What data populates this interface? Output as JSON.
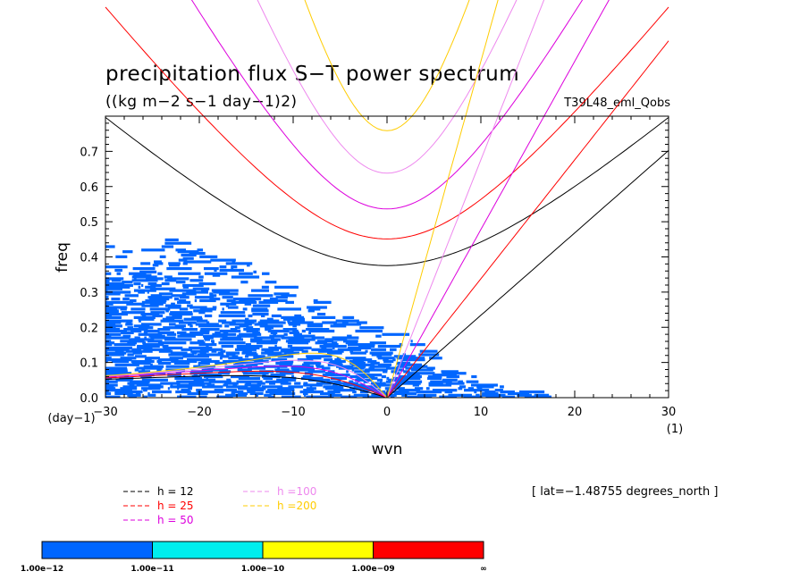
{
  "chart_data": {
    "type": "contour-spectrum",
    "title": "precipitation flux S−T power spectrum",
    "units": "((kg m−2 s−1 day−1)2)",
    "run_label": "T39L48_eml_Qobs",
    "lat_note": "[ lat=−1.48755 degrees_north ]",
    "xlabel": "wvn",
    "ylabel": "freq",
    "x_unit_label": "(1)",
    "y_unit_label": "(day−1)",
    "xlim": [
      -30,
      30
    ],
    "ylim": [
      0,
      0.8
    ],
    "xticks": [
      {
        "value": -30,
        "label": "−30"
      },
      {
        "value": -20,
        "label": "−20"
      },
      {
        "value": -10,
        "label": "−10"
      },
      {
        "value": 0,
        "label": "0"
      },
      {
        "value": 10,
        "label": "10"
      },
      {
        "value": 20,
        "label": "20"
      },
      {
        "value": 30,
        "label": "30"
      }
    ],
    "yticks": [
      {
        "value": 0,
        "label": "0.0"
      },
      {
        "value": 0.1,
        "label": "0.1"
      },
      {
        "value": 0.2,
        "label": "0.2"
      },
      {
        "value": 0.3,
        "label": "0.3"
      },
      {
        "value": 0.4,
        "label": "0.4"
      },
      {
        "value": 0.5,
        "label": "0.5"
      },
      {
        "value": 0.6,
        "label": "0.6"
      },
      {
        "value": 0.7,
        "label": "0.7"
      }
    ],
    "dispersion_curves": [
      {
        "label": "h = 12",
        "h": 12,
        "color": "#000000"
      },
      {
        "label": "h = 25",
        "h": 25,
        "color": "#ff0000"
      },
      {
        "label": "h = 50",
        "h": 50,
        "color": "#dd00dd"
      },
      {
        "label": "h =100",
        "h": 100,
        "color": "#ee88ee"
      },
      {
        "label": "h =200",
        "h": 200,
        "color": "#ffcc00"
      }
    ],
    "shading_levels": [
      {
        "label": "1.00e−12",
        "color": "#0066ff"
      },
      {
        "label": "1.00e−11",
        "color": "#00eeee"
      },
      {
        "label": "1.00e−10",
        "color": "#ffff00"
      },
      {
        "label": "1.00e−09",
        "color": "#ff0000"
      },
      {
        "label": "∞",
        "color": null
      }
    ],
    "shaded_region": {
      "level": "1.00e−12",
      "color": "#0066ff",
      "description_points": [
        {
          "wvn": -30,
          "freq_max": 0.45
        },
        {
          "wvn": -25,
          "freq_max": 0.47
        },
        {
          "wvn": -15,
          "freq_max": 0.38
        },
        {
          "wvn": -5,
          "freq_max": 0.25
        },
        {
          "wvn": 0,
          "freq_max": 0.2
        },
        {
          "wvn": 10,
          "freq_max": 0.05
        },
        {
          "wvn": 17,
          "freq_max": 0.01
        }
      ]
    }
  }
}
